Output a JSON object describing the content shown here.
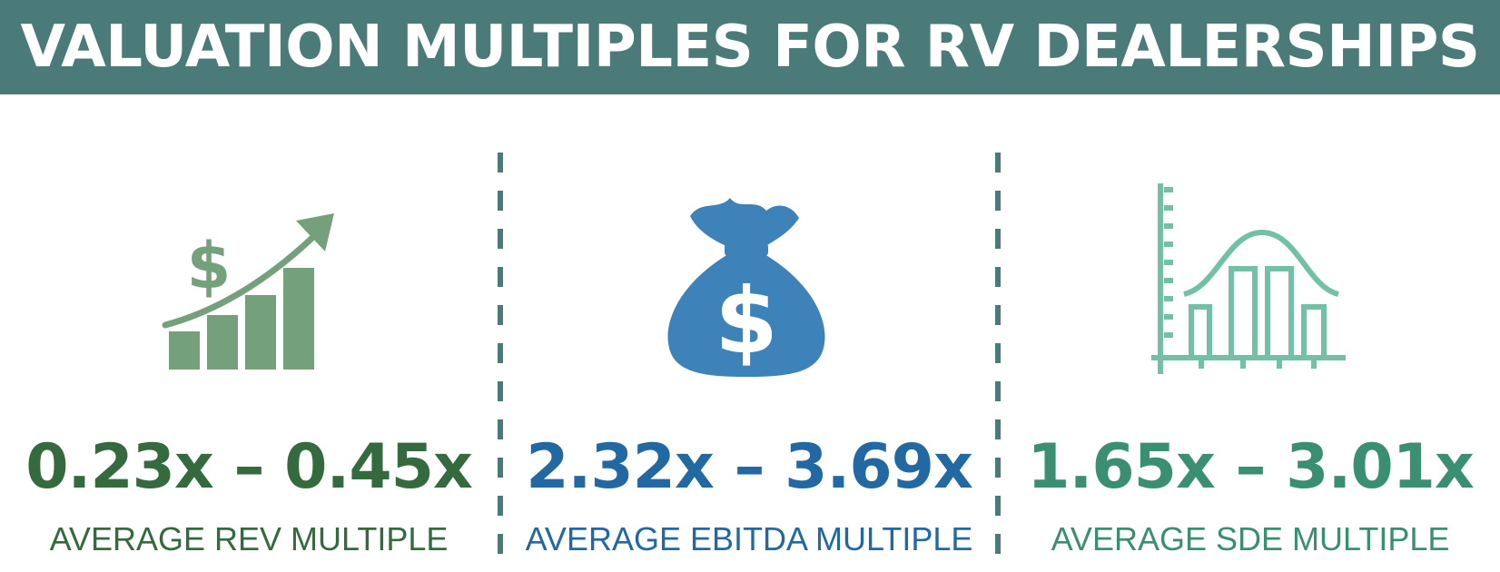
{
  "header": {
    "title": "VALUATION MULTIPLES FOR RV DEALERSHIPS"
  },
  "colors": {
    "banner": "#4b7b78",
    "rev": "#356a3f",
    "ebitda": "#2268a3",
    "sde": "#3a8f73",
    "rev_icon": "#74a17c",
    "ebitda_icon": "#3d82b8",
    "sde_icon": "#72c1a6"
  },
  "metrics": [
    {
      "range": "0.23x – 0.45x",
      "caption": "AVERAGE REV MULTIPLE",
      "icon": "growth-chart-dollar-icon"
    },
    {
      "range": "2.32x – 3.69x",
      "caption": "AVERAGE EBITDA MULTIPLE",
      "icon": "money-bag-icon"
    },
    {
      "range": "1.65x – 3.01x",
      "caption": "AVERAGE SDE MULTIPLE",
      "icon": "bell-curve-histogram-icon"
    }
  ]
}
